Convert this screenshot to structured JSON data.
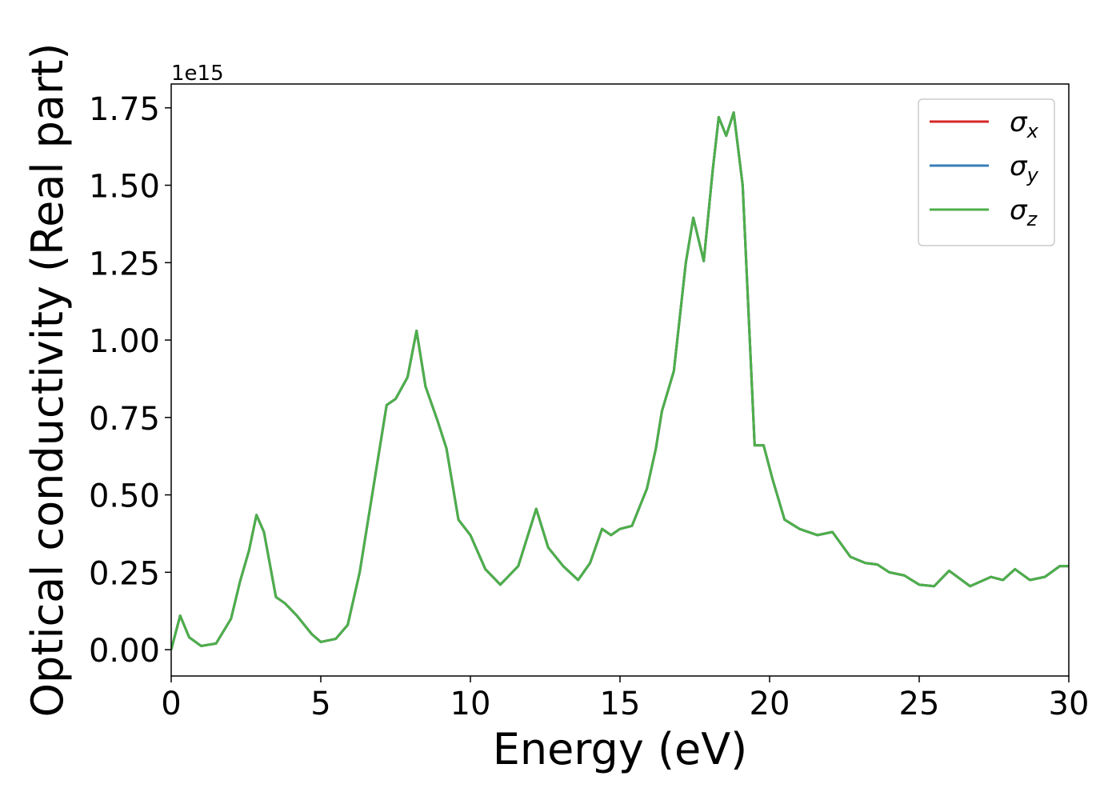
{
  "chart_data": {
    "type": "line",
    "xlabel": "Energy (eV)",
    "ylabel": "Optical conductivity (Real part)",
    "offset_text": "1e15",
    "x": [
      0,
      0.3,
      0.6,
      1.0,
      1.5,
      2.0,
      2.3,
      2.6,
      2.85,
      3.1,
      3.5,
      3.8,
      4.2,
      4.7,
      5.0,
      5.5,
      5.9,
      6.3,
      6.8,
      7.2,
      7.5,
      7.9,
      8.2,
      8.5,
      8.9,
      9.2,
      9.6,
      10.0,
      10.5,
      11.0,
      11.6,
      12.2,
      12.6,
      13.1,
      13.6,
      14.0,
      14.4,
      14.7,
      15.0,
      15.4,
      15.9,
      16.2,
      16.4,
      16.8,
      17.2,
      17.45,
      17.8,
      18.1,
      18.3,
      18.55,
      18.8,
      19.1,
      19.5,
      19.8,
      20.1,
      20.5,
      21.0,
      21.6,
      22.1,
      22.7,
      23.2,
      23.6,
      24.0,
      24.5,
      25.0,
      25.5,
      26.0,
      26.7,
      27.4,
      27.8,
      28.2,
      28.7,
      29.2,
      29.7,
      30.0
    ],
    "series": [
      {
        "name": "σx",
        "color": "#d62728",
        "values": [
          0,
          0.11,
          0.04,
          0.012,
          0.02,
          0.1,
          0.22,
          0.32,
          0.435,
          0.38,
          0.17,
          0.15,
          0.11,
          0.05,
          0.025,
          0.035,
          0.08,
          0.25,
          0.55,
          0.79,
          0.81,
          0.88,
          1.03,
          0.85,
          0.74,
          0.65,
          0.42,
          0.37,
          0.26,
          0.21,
          0.27,
          0.455,
          0.33,
          0.27,
          0.225,
          0.28,
          0.39,
          0.37,
          0.39,
          0.4,
          0.52,
          0.65,
          0.77,
          0.9,
          1.25,
          1.395,
          1.255,
          1.55,
          1.72,
          1.66,
          1.735,
          1.5,
          0.66,
          0.66,
          0.55,
          0.42,
          0.39,
          0.37,
          0.38,
          0.3,
          0.28,
          0.275,
          0.25,
          0.24,
          0.21,
          0.205,
          0.255,
          0.205,
          0.235,
          0.225,
          0.26,
          0.225,
          0.235,
          0.27,
          0.27
        ]
      },
      {
        "name": "σy",
        "color": "#377eb8",
        "values": [
          0,
          0.11,
          0.04,
          0.012,
          0.02,
          0.1,
          0.22,
          0.32,
          0.435,
          0.38,
          0.17,
          0.15,
          0.11,
          0.05,
          0.025,
          0.035,
          0.08,
          0.25,
          0.55,
          0.79,
          0.81,
          0.88,
          1.03,
          0.85,
          0.74,
          0.65,
          0.42,
          0.37,
          0.26,
          0.21,
          0.27,
          0.455,
          0.33,
          0.27,
          0.225,
          0.28,
          0.39,
          0.37,
          0.39,
          0.4,
          0.52,
          0.65,
          0.77,
          0.9,
          1.25,
          1.395,
          1.255,
          1.55,
          1.72,
          1.66,
          1.735,
          1.5,
          0.66,
          0.66,
          0.55,
          0.42,
          0.39,
          0.37,
          0.38,
          0.3,
          0.28,
          0.275,
          0.25,
          0.24,
          0.21,
          0.205,
          0.255,
          0.205,
          0.235,
          0.225,
          0.26,
          0.225,
          0.235,
          0.27,
          0.27
        ]
      },
      {
        "name": "σz",
        "color": "#4daf4a",
        "values": [
          0,
          0.11,
          0.04,
          0.012,
          0.02,
          0.1,
          0.22,
          0.32,
          0.435,
          0.38,
          0.17,
          0.15,
          0.11,
          0.05,
          0.025,
          0.035,
          0.08,
          0.25,
          0.55,
          0.79,
          0.81,
          0.88,
          1.03,
          0.85,
          0.74,
          0.65,
          0.42,
          0.37,
          0.26,
          0.21,
          0.27,
          0.455,
          0.33,
          0.27,
          0.225,
          0.28,
          0.39,
          0.37,
          0.39,
          0.4,
          0.52,
          0.65,
          0.77,
          0.9,
          1.25,
          1.395,
          1.255,
          1.55,
          1.72,
          1.66,
          1.735,
          1.5,
          0.66,
          0.66,
          0.55,
          0.42,
          0.39,
          0.37,
          0.38,
          0.3,
          0.28,
          0.275,
          0.25,
          0.24,
          0.21,
          0.205,
          0.255,
          0.205,
          0.235,
          0.225,
          0.26,
          0.225,
          0.235,
          0.27,
          0.27
        ]
      }
    ],
    "xlim": [
      0,
      30
    ],
    "xticks": [
      0,
      5,
      10,
      15,
      20,
      25,
      30
    ],
    "ylim": [
      -0.085,
      1.827
    ],
    "yticks": [
      {
        "value": 0,
        "label": "0.00"
      },
      0.25,
      {
        "value": 0.5,
        "label": "0.50"
      },
      0.75,
      {
        "value": 1,
        "label": "1.00"
      },
      1.25,
      {
        "value": 1.5,
        "label": "1.50"
      },
      1.75
    ],
    "legend": "upper right",
    "grid": false
  }
}
